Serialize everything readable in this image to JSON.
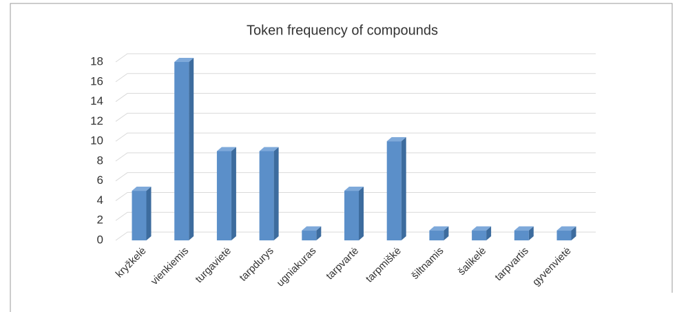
{
  "chart_data": {
    "type": "bar3d",
    "title": "Token frequency of compounds",
    "categories": [
      "kryžkelė",
      "vienkiemis",
      "turgavietė",
      "tarpdurys",
      "ugniakuras",
      "tarpvartė",
      "tarpmiškė",
      "šiltnamis",
      "šalikelė",
      "tarpvartis",
      "gyvenvietė"
    ],
    "values": [
      5,
      18,
      9,
      9,
      1,
      5,
      10,
      1,
      1,
      1,
      1
    ],
    "color": "#5b8fc9",
    "ylim": [
      0,
      18
    ],
    "yticks": [
      0,
      2,
      4,
      6,
      8,
      10,
      12,
      14,
      16,
      18
    ],
    "grid": true
  }
}
